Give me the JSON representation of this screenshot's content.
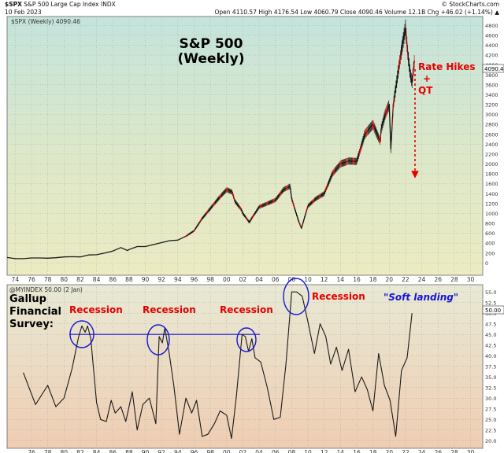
{
  "header": {
    "symbol": "$SPX",
    "name": "S&P 500 Large Cap Index",
    "exchange": "INDX",
    "date": "10 Feb 2023",
    "ohlc_line": "Open 4110.57  High 4176.54  Low 4060.79  Close 4090.46  Volume 12.1B  Chg +46.02 (+1.14%) ▲",
    "source": "© StockCharts.com"
  },
  "chart_data": [
    {
      "type": "line",
      "title": "S&P 500 (Weekly)",
      "legend": "$SPX (Weekly) 4090.46",
      "last_value_label": "4090.46",
      "x_tick_labels": [
        "74",
        "76",
        "78",
        "80",
        "82",
        "84",
        "86",
        "88",
        "90",
        "92",
        "94",
        "96",
        "98",
        "00",
        "02",
        "04",
        "06",
        "08",
        "10",
        "12",
        "14",
        "16",
        "18",
        "20",
        "22",
        "24",
        "26",
        "28",
        "30"
      ],
      "y_tick_labels": [
        "0",
        "200",
        "400",
        "600",
        "800",
        "1000",
        "1200",
        "1400",
        "1600",
        "1800",
        "2000",
        "2200",
        "2400",
        "2600",
        "2800",
        "3000",
        "3200",
        "3400",
        "3600",
        "3800",
        "4000",
        "4200",
        "4400",
        "4600",
        "4800"
      ],
      "xlim": [
        1973,
        2031.5
      ],
      "ylim": [
        -250,
        4980
      ],
      "x": [
        1973.0,
        1974.0,
        1975.0,
        1976.0,
        1977.0,
        1978.0,
        1979.0,
        1980.0,
        1981.0,
        1982.0,
        1983.0,
        1984.0,
        1985.0,
        1986.0,
        1987.0,
        1987.8,
        1988.0,
        1989.0,
        1990.0,
        1991.0,
        1992.0,
        1993.0,
        1994.0,
        1995.0,
        1996.0,
        1997.0,
        1998.0,
        1999.0,
        2000.0,
        2000.7,
        2001.0,
        2001.8,
        2002.0,
        2002.8,
        2003.0,
        2004.0,
        2005.0,
        2006.0,
        2007.0,
        2007.8,
        2008.0,
        2008.8,
        2009.2,
        2010.0,
        2011.0,
        2012.0,
        2013.0,
        2014.0,
        2015.0,
        2016.0,
        2017.0,
        2018.0,
        2018.9,
        2019.0,
        2019.5,
        2020.0,
        2020.2,
        2020.5,
        2021.0,
        2021.5,
        2022.0,
        2022.3,
        2022.6,
        2022.8,
        2023.1
      ],
      "values": [
        110,
        85,
        85,
        100,
        100,
        95,
        105,
        120,
        125,
        120,
        160,
        165,
        200,
        240,
        310,
        250,
        270,
        330,
        330,
        370,
        410,
        450,
        460,
        540,
        650,
        900,
        1100,
        1300,
        1480,
        1430,
        1250,
        1080,
        1000,
        820,
        880,
        1130,
        1200,
        1270,
        1480,
        1550,
        1300,
        870,
        700,
        1150,
        1300,
        1400,
        1800,
        2000,
        2060,
        2050,
        2600,
        2800,
        2450,
        2700,
        3000,
        3200,
        2300,
        3200,
        3750,
        4300,
        4750,
        4200,
        3800,
        3650,
        4090
      ],
      "annotations": [
        "Rate Hikes",
        "+",
        "QT"
      ]
    },
    {
      "type": "line",
      "title": "Gallup Financial Survey:",
      "legend": "@MYINDEX 50.00 (2 Jan)",
      "last_value_label": "50.00",
      "x_tick_labels": [
        "76",
        "78",
        "80",
        "82",
        "84",
        "86",
        "88",
        "90",
        "92",
        "94",
        "96",
        "98",
        "00",
        "02",
        "04",
        "06",
        "08",
        "10",
        "12",
        "14",
        "16",
        "18",
        "20",
        "22",
        "24",
        "26",
        "28",
        "30"
      ],
      "y_tick_labels": [
        "20.0",
        "22.5",
        "25.0",
        "27.5",
        "30.0",
        "32.5",
        "35.0",
        "37.5",
        "40.0",
        "42.5",
        "45.0",
        "47.5",
        "50.0",
        "52.5",
        "55.0"
      ],
      "xlim": [
        1973,
        2031.5
      ],
      "ylim": [
        18.2,
        56.7
      ],
      "x": [
        1975.0,
        1976.5,
        1978.0,
        1979.0,
        1980.0,
        1981.0,
        1981.8,
        1982.2,
        1982.6,
        1982.9,
        1983.3,
        1984.0,
        1984.5,
        1985.2,
        1985.8,
        1986.3,
        1987.0,
        1987.6,
        1988.4,
        1989.0,
        1989.7,
        1990.5,
        1991.3,
        1991.7,
        1992.1,
        1992.4,
        1992.9,
        1993.5,
        1994.2,
        1995.0,
        1995.7,
        1996.3,
        1997.0,
        1997.7,
        1998.5,
        1999.2,
        2000.0,
        2000.6,
        2001.2,
        2001.9,
        2002.3,
        2002.7,
        2003.1,
        2003.5,
        2004.2,
        2005.0,
        2005.8,
        2006.6,
        2007.3,
        2008.0,
        2008.6,
        2009.3,
        2010.0,
        2010.8,
        2011.5,
        2012.2,
        2012.8,
        2013.5,
        2014.2,
        2015.0,
        2015.8,
        2016.6,
        2017.3,
        2018.0,
        2018.7,
        2019.4,
        2020.1,
        2020.8,
        2021.5,
        2022.2,
        2022.8
      ],
      "values": [
        36.0,
        28.5,
        33.0,
        28.0,
        30.0,
        37.0,
        44.5,
        47.0,
        45.5,
        47.0,
        44.0,
        29.0,
        25.0,
        24.5,
        29.5,
        26.5,
        28.0,
        24.5,
        31.5,
        22.5,
        28.5,
        30.0,
        24.0,
        44.5,
        43.0,
        46.5,
        41.0,
        33.0,
        21.5,
        30.0,
        26.5,
        29.5,
        21.0,
        21.5,
        24.0,
        27.0,
        26.0,
        20.5,
        30.5,
        45.0,
        44.5,
        41.0,
        44.0,
        39.5,
        38.5,
        32.5,
        25.0,
        25.5,
        38.0,
        55.0,
        55.0,
        54.0,
        48.0,
        40.5,
        47.5,
        44.5,
        38.0,
        42.0,
        36.5,
        41.5,
        31.5,
        35.0,
        32.0,
        27.0,
        40.5,
        33.0,
        29.5,
        21.0,
        36.5,
        39.5,
        50.0
      ],
      "horizontal_line": 45.0,
      "annotations": [
        "Recession",
        "Recession",
        "Recession",
        "Recession",
        "\"Soft landing\""
      ]
    }
  ],
  "colors": {
    "top_bg_upper": "#c4e4dc",
    "top_bg_lower": "#ecebc2",
    "bottom_bg_upper": "#e8e9d4",
    "bottom_bg_lower": "#efcdb2",
    "price": "#1a1a1a",
    "annotation_red": "#e60000",
    "annotation_blue": "#1515d8",
    "grid": "#a8a8a8"
  }
}
